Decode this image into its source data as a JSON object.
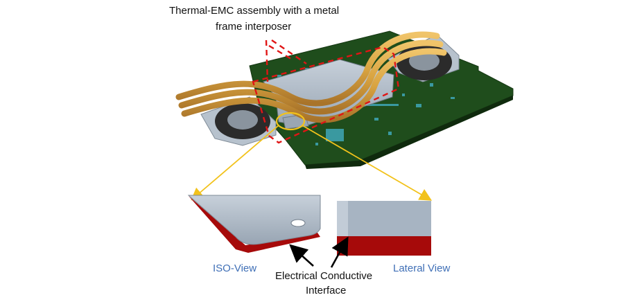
{
  "title": {
    "line1": "Thermal-EMC assembly with a metal",
    "line2": "frame interposer"
  },
  "views": {
    "iso": "ISO-View",
    "lateral": "Lateral View"
  },
  "callout": {
    "line1": "Electrical Conductive",
    "line2": "Interface"
  },
  "colors": {
    "pcb_green": "#1f4d1c",
    "heatpipe_copper": "#d9a441",
    "metal_gray": "#a7b4c2",
    "conductive_red": "#a60a0a",
    "highlight_dash": "#e01515",
    "zoom_arrow": "#f2c21b",
    "view_label_blue": "#3f6fb6"
  },
  "icons": [
    "pcb-board",
    "heat-pipe",
    "fan",
    "metal-frame",
    "zoom-circle",
    "arrow"
  ]
}
